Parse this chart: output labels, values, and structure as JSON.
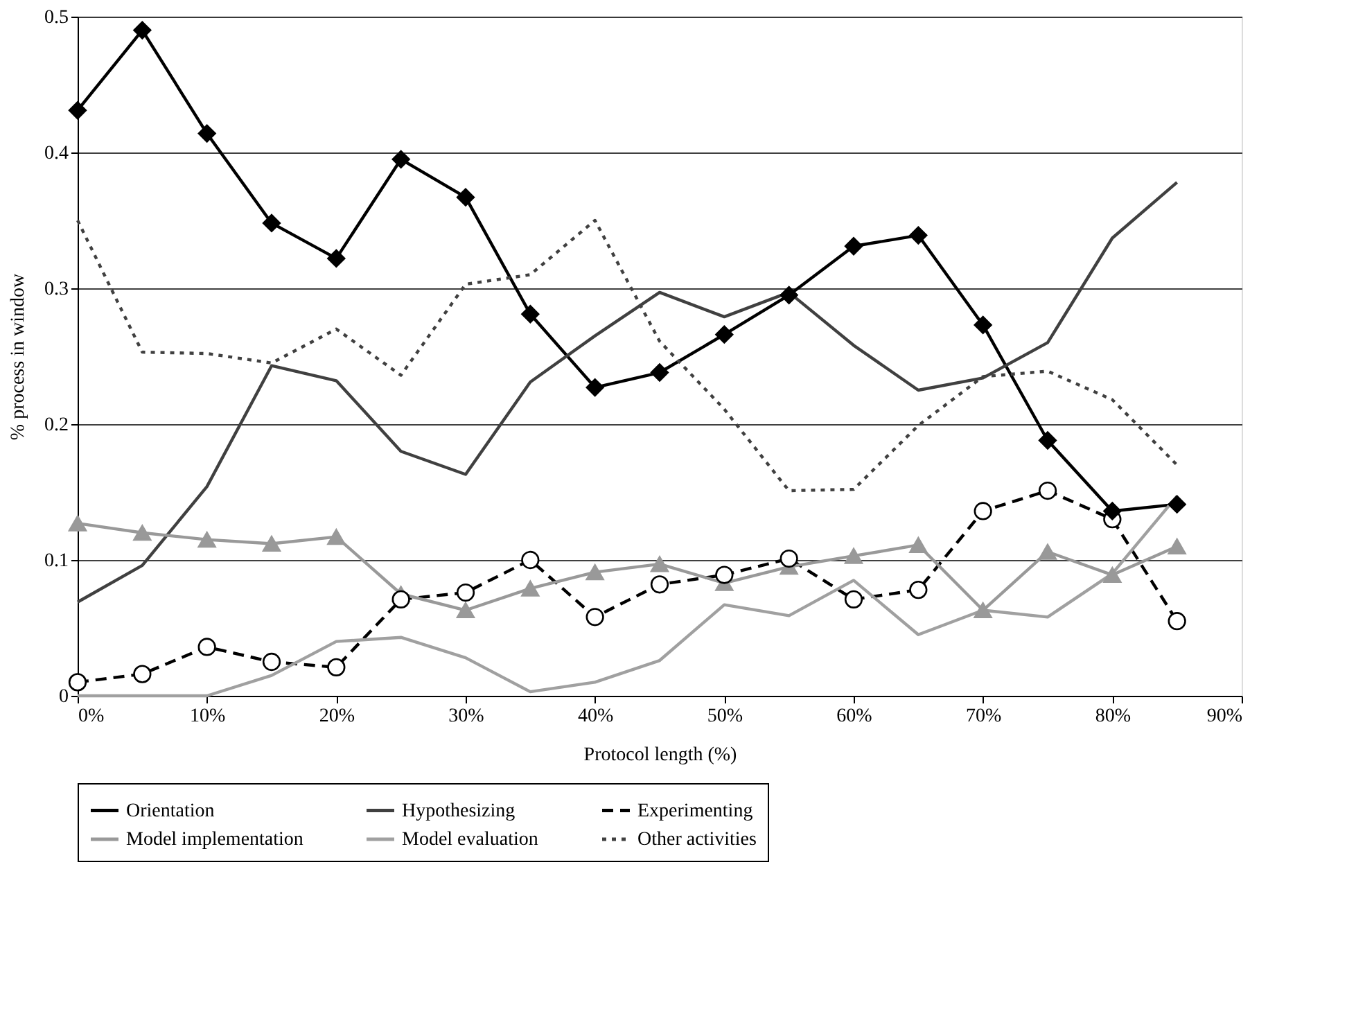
{
  "chart_data": {
    "type": "line",
    "xlabel": "Protocol length (%)",
    "ylabel": "% process in window",
    "x": [
      0,
      5,
      10,
      15,
      20,
      25,
      30,
      35,
      40,
      45,
      50,
      55,
      60,
      65,
      70,
      75,
      80,
      85
    ],
    "xlim": [
      0,
      90
    ],
    "xticks": [
      {
        "value": 0,
        "label": "0%"
      },
      {
        "value": 10,
        "label": "10%"
      },
      {
        "value": 20,
        "label": "20%"
      },
      {
        "value": 30,
        "label": "30%"
      },
      {
        "value": 40,
        "label": "40%"
      },
      {
        "value": 50,
        "label": "50%"
      },
      {
        "value": 60,
        "label": "60%"
      },
      {
        "value": 70,
        "label": "70%"
      },
      {
        "value": 80,
        "label": "80%"
      },
      {
        "value": 90,
        "label": "90%"
      }
    ],
    "ylim": [
      0,
      0.5
    ],
    "yticks": [
      0,
      0.1,
      0.2,
      0.3,
      0.4,
      0.5
    ],
    "grid": "y",
    "legend": "bottom",
    "series": [
      {
        "name": "Orientation",
        "color": "#000000",
        "marker": "diamond",
        "line_style": "solid",
        "values": [
          0.431,
          0.49,
          0.414,
          0.348,
          0.322,
          0.395,
          0.367,
          0.281,
          0.227,
          0.238,
          0.266,
          0.295,
          0.331,
          0.339,
          0.273,
          0.188,
          0.136,
          0.141
        ]
      },
      {
        "name": "Hypothesizing",
        "color": "#404040",
        "marker": "none",
        "line_style": "solid",
        "values": [
          0.069,
          0.096,
          0.154,
          0.243,
          0.232,
          0.18,
          0.163,
          0.231,
          0.265,
          0.297,
          0.279,
          0.297,
          0.258,
          0.225,
          0.234,
          0.26,
          0.337,
          0.378
        ]
      },
      {
        "name": "Experimenting",
        "color": "#000000",
        "marker": "circle",
        "line_style": "dashed",
        "values": [
          0.01,
          0.016,
          0.036,
          0.025,
          0.021,
          0.071,
          0.076,
          0.1,
          0.058,
          0.082,
          0.089,
          0.101,
          0.071,
          0.078,
          0.136,
          0.151,
          0.13,
          0.055
        ]
      },
      {
        "name": "Model implementation",
        "color": "#999999",
        "marker": "triangle",
        "line_style": "solid",
        "values": [
          0.127,
          0.12,
          0.115,
          0.112,
          0.117,
          0.075,
          0.063,
          0.079,
          0.091,
          0.097,
          0.083,
          0.095,
          0.103,
          0.111,
          0.063,
          0.106,
          0.089,
          0.11
        ]
      },
      {
        "name": "Model evaluation",
        "color": "#a0a0a0",
        "marker": "none",
        "line_style": "solid",
        "values": [
          0,
          0,
          0,
          0.015,
          0.04,
          0.043,
          0.028,
          0.003,
          0.01,
          0.026,
          0.067,
          0.059,
          0.085,
          0.045,
          0.063,
          0.058,
          0.09,
          0.147
        ]
      },
      {
        "name": "Other activities",
        "color": "#404040",
        "marker": "none",
        "line_style": "dotted",
        "values": [
          0.35,
          0.253,
          0.252,
          0.245,
          0.27,
          0.236,
          0.303,
          0.31,
          0.35,
          0.261,
          0.211,
          0.151,
          0.152,
          0.199,
          0.235,
          0.239,
          0.218,
          0.17
        ]
      }
    ]
  }
}
